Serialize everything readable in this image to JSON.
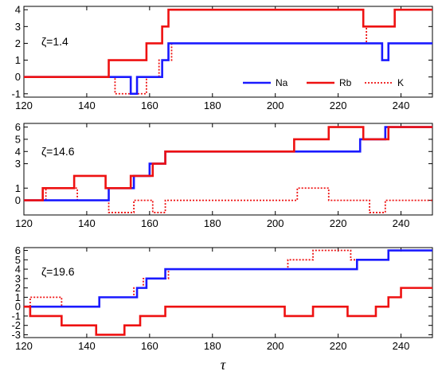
{
  "chart_data": [
    {
      "type": "line",
      "panel_label": "ζ=1.4",
      "xlim": [
        120,
        250
      ],
      "ylim": [
        -1.2,
        4.2
      ],
      "x_ticks": [
        120,
        140,
        160,
        180,
        200,
        220,
        240
      ],
      "y_ticks": [
        -1,
        0,
        1,
        2,
        3,
        4
      ],
      "legend": {
        "placement": "bottom-right",
        "entries": [
          "Na",
          "Rb",
          "K"
        ]
      },
      "series": [
        {
          "name": "Na",
          "color": "#1a1aff",
          "style": "solid",
          "steps": [
            [
              120,
              0
            ],
            [
              154,
              -1
            ],
            [
              156,
              0
            ],
            [
              164,
              1
            ],
            [
              166,
              2
            ],
            [
              234,
              1
            ],
            [
              236,
              2
            ],
            [
              250,
              2
            ]
          ]
        },
        {
          "name": "Rb",
          "color": "#ee1111",
          "style": "solid",
          "steps": [
            [
              120,
              0
            ],
            [
              147,
              1
            ],
            [
              159,
              2
            ],
            [
              164,
              3
            ],
            [
              166,
              4
            ],
            [
              228,
              3
            ],
            [
              238,
              4
            ],
            [
              250,
              4
            ]
          ]
        },
        {
          "name": "K",
          "color": "#ee1111",
          "style": "dotted",
          "steps": [
            [
              120,
              0
            ],
            [
              149,
              -1
            ],
            [
              159,
              0
            ],
            [
              163,
              1
            ],
            [
              167,
              2
            ],
            [
              229,
              3
            ],
            [
              238,
              4
            ],
            [
              250,
              4
            ]
          ]
        }
      ]
    },
    {
      "type": "line",
      "panel_label": "ζ=14.6",
      "xlim": [
        120,
        250
      ],
      "ylim": [
        -1.2,
        6.3
      ],
      "x_ticks": [
        120,
        140,
        160,
        180,
        200,
        220,
        240
      ],
      "y_ticks": [
        0,
        1,
        3,
        4,
        5,
        6
      ],
      "series": [
        {
          "name": "Na",
          "color": "#1a1aff",
          "style": "solid",
          "steps": [
            [
              120,
              0
            ],
            [
              147,
              1
            ],
            [
              155,
              2
            ],
            [
              160,
              3
            ],
            [
              165,
              4
            ],
            [
              227,
              5
            ],
            [
              235,
              6
            ],
            [
              250,
              6
            ]
          ]
        },
        {
          "name": "Rb",
          "color": "#ee1111",
          "style": "solid",
          "steps": [
            [
              120,
              0
            ],
            [
              126,
              1
            ],
            [
              136,
              2
            ],
            [
              146,
              1
            ],
            [
              154,
              2
            ],
            [
              161,
              3
            ],
            [
              165,
              4
            ],
            [
              206,
              5
            ],
            [
              217,
              6
            ],
            [
              228,
              5
            ],
            [
              236,
              6
            ],
            [
              250,
              6
            ]
          ]
        },
        {
          "name": "K",
          "color": "#ee1111",
          "style": "dotted",
          "steps": [
            [
              120,
              0
            ],
            [
              127,
              1
            ],
            [
              137,
              0
            ],
            [
              147,
              -1
            ],
            [
              155,
              0
            ],
            [
              161,
              -1
            ],
            [
              165,
              0
            ],
            [
              207,
              1
            ],
            [
              217,
              0
            ],
            [
              230,
              -1
            ],
            [
              235,
              0
            ],
            [
              250,
              0
            ]
          ]
        }
      ]
    },
    {
      "type": "line",
      "panel_label": "ζ=19.6",
      "xlim": [
        120,
        250
      ],
      "ylim": [
        -3.3,
        6.3
      ],
      "x_ticks": [
        120,
        140,
        160,
        180,
        200,
        220,
        240
      ],
      "y_ticks": [
        -3,
        -2,
        -1,
        0,
        1,
        2,
        3,
        4,
        5,
        6
      ],
      "x_axis_label": "τ",
      "series": [
        {
          "name": "Na",
          "color": "#1a1aff",
          "style": "solid",
          "steps": [
            [
              120,
              0
            ],
            [
              144,
              1
            ],
            [
              156,
              2
            ],
            [
              159,
              3
            ],
            [
              165,
              4
            ],
            [
              226,
              5
            ],
            [
              236,
              6
            ],
            [
              250,
              6
            ]
          ]
        },
        {
          "name": "Rb",
          "color": "#ee1111",
          "style": "solid",
          "steps": [
            [
              120,
              0
            ],
            [
              122,
              -1
            ],
            [
              132,
              -2
            ],
            [
              143,
              -3
            ],
            [
              152,
              -2
            ],
            [
              157,
              -1
            ],
            [
              165,
              0
            ],
            [
              203,
              -1
            ],
            [
              212,
              0
            ],
            [
              223,
              -1
            ],
            [
              232,
              0
            ],
            [
              236,
              1
            ],
            [
              240,
              2
            ],
            [
              250,
              2
            ]
          ]
        },
        {
          "name": "K",
          "color": "#ee1111",
          "style": "dotted",
          "steps": [
            [
              120,
              0
            ],
            [
              122,
              1
            ],
            [
              132,
              0
            ],
            [
              144,
              1
            ],
            [
              155,
              2
            ],
            [
              158,
              3
            ],
            [
              166,
              4
            ],
            [
              204,
              5
            ],
            [
              212,
              6
            ],
            [
              224,
              5
            ],
            [
              236,
              6
            ],
            [
              250,
              6
            ]
          ]
        }
      ]
    }
  ]
}
